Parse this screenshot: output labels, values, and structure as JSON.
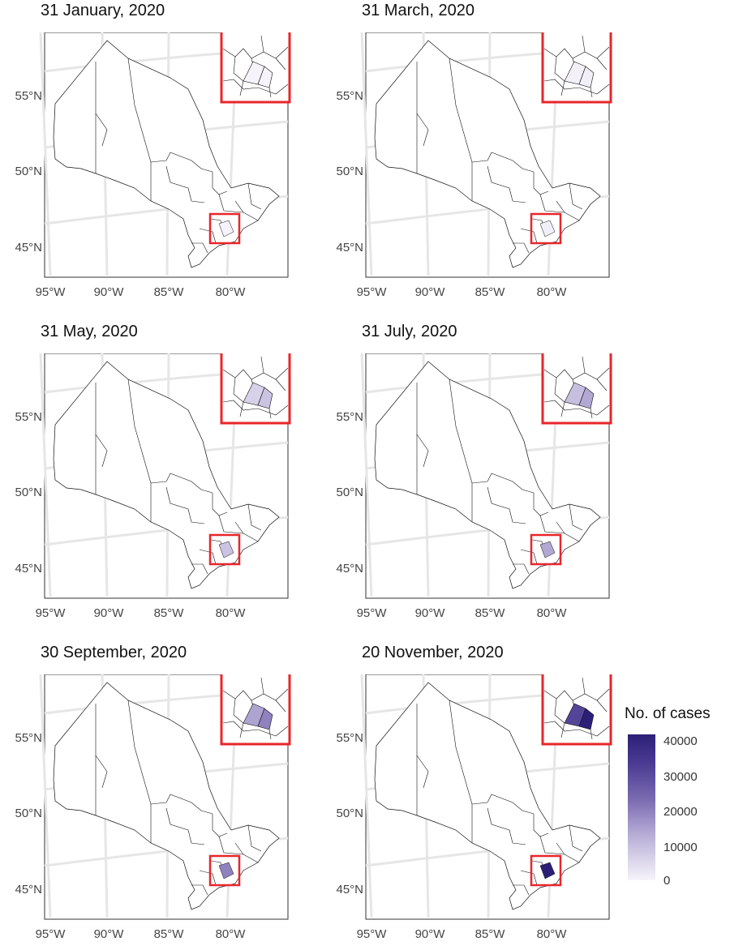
{
  "panels": [
    {
      "title": "31 January, 2020",
      "intensity": 0.0
    },
    {
      "title": "31 March, 2020",
      "intensity": 0.02
    },
    {
      "title": "31 May, 2020",
      "intensity": 0.18
    },
    {
      "title": "31 July, 2020",
      "intensity": 0.28
    },
    {
      "title": "30 September, 2020",
      "intensity": 0.42
    },
    {
      "title": "20 November, 2020",
      "intensity": 1.0
    }
  ],
  "axes": {
    "lat_labels": [
      "55°N",
      "50°N",
      "45°N"
    ],
    "lon_labels": [
      "95°W",
      "90°W",
      "85°W",
      "80°W"
    ]
  },
  "legend": {
    "title": "No. of cases",
    "ticks": [
      "40000",
      "30000",
      "20000",
      "10000",
      "0"
    ],
    "max": 40000,
    "colors": [
      "#f6f4fa",
      "#b9b0d8",
      "#7b6cb2",
      "#4b3b93",
      "#2c1f78"
    ]
  },
  "inset_color": "#e8262b"
}
